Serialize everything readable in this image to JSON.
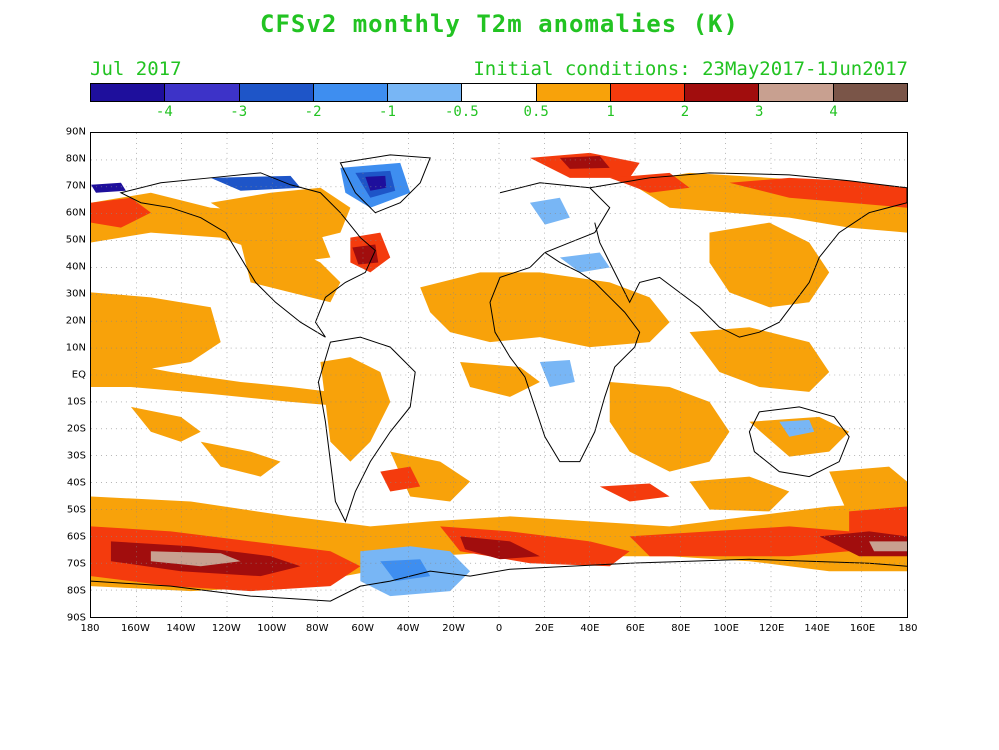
{
  "title": "CFSv2 monthly T2m anomalies (K)",
  "month": "Jul 2017",
  "initial_conditions": "Initial conditions: 23May2017-1Jun2017",
  "colorbar": {
    "colors": [
      "#1e0f9c",
      "#3d33c8",
      "#1e55c8",
      "#3e8ef0",
      "#78b6f5",
      "#ffffff",
      "#f8a20a",
      "#f43b0d",
      "#a10d0d",
      "#c8a090",
      "#7a5548"
    ],
    "labels": [
      "-4",
      "-3",
      "-2",
      "-1",
      "-0.5",
      "0.5",
      "1",
      "2",
      "3",
      "4"
    ]
  },
  "axes": {
    "lat_labels": [
      "90N",
      "80N",
      "70N",
      "60N",
      "50N",
      "40N",
      "30N",
      "20N",
      "10N",
      "EQ",
      "10S",
      "20S",
      "30S",
      "40S",
      "50S",
      "60S",
      "70S",
      "80S",
      "90S"
    ],
    "lon_labels": [
      "180",
      "160W",
      "140W",
      "120W",
      "100W",
      "80W",
      "60W",
      "40W",
      "20W",
      "0",
      "20E",
      "40E",
      "60E",
      "80E",
      "100E",
      "120E",
      "140E",
      "160E",
      "180"
    ]
  },
  "map": {
    "projection": "equirectangular",
    "grid": "dotted 10-degree",
    "colors": {
      "ocean_background": "#ffffff",
      "weak_warm": "#f8a20a",
      "warm": "#f43b0d",
      "strong_warm": "#a10d0d",
      "very_warm": "#c8a090",
      "weak_cool": "#78b6f5",
      "cool": "#3e8ef0",
      "strong_cool": "#1e55c8",
      "coastline": "#000000"
    }
  }
}
